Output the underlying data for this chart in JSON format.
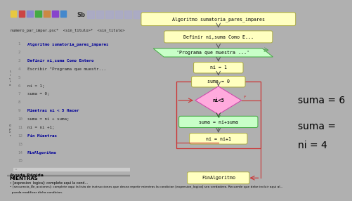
{
  "toolbar_bg": "#d0cec8",
  "editor_bg": "#f5f5f0",
  "editor_left_bg": "#e8e8e8",
  "flowchart_bg": "#e8f5e8",
  "help_bg": "#e0e0da",
  "code_lines": [
    [
      1,
      "  Algoritmo sumatoria_pares_impares",
      true
    ],
    [
      2,
      "",
      false
    ],
    [
      3,
      "    Definir ni,suma Como Entero",
      true
    ],
    [
      4,
      "    Escribir \"Programa que muestr...",
      false
    ],
    [
      5,
      "",
      false
    ],
    [
      6,
      "    ni = 1;",
      false
    ],
    [
      7,
      "    suma = 0;",
      false
    ],
    [
      8,
      "",
      false
    ],
    [
      9,
      "    Mientras ni < 5 Hacer",
      true
    ],
    [
      10,
      "      suma = ni + suma;",
      false
    ],
    [
      11,
      "      ni = ni +1;",
      false
    ],
    [
      12,
      "    Fin Mientras",
      true
    ],
    [
      13,
      "",
      false
    ],
    [
      14,
      "  FinAlgoritmo",
      true
    ],
    [
      15,
      "",
      false
    ]
  ],
  "fc_bg": "#e8f5e8",
  "node_fill_yellow": "#ffffc0",
  "node_edge_yellow": "#aaaa44",
  "node_fill_green": "#c8ffc8",
  "node_edge_green": "#44aa44",
  "diamond_fill": "#ffaadd",
  "diamond_edge": "#cc44aa",
  "loop_rect_color": "#cc3333",
  "arrow_color": "#555555",
  "anno_suma6": "suma = 6",
  "anno_suma": "suma =",
  "anno_ni4": "ni = 4",
  "help_title": "Ayuda Rápida",
  "help_keyword": "MIENTRAS",
  "help_b1": "• [expresion_logica]: complete aqui la cond...",
  "help_b2": "• [secuencia_de_acciones]: complete aqui la lista de instrucciones que desea repetir mientras la condicion [expresion_logica] sea verdadera. Recuerde que debe incluir aqui al...",
  "help_b3": "  pueda modificar dicha condicion."
}
